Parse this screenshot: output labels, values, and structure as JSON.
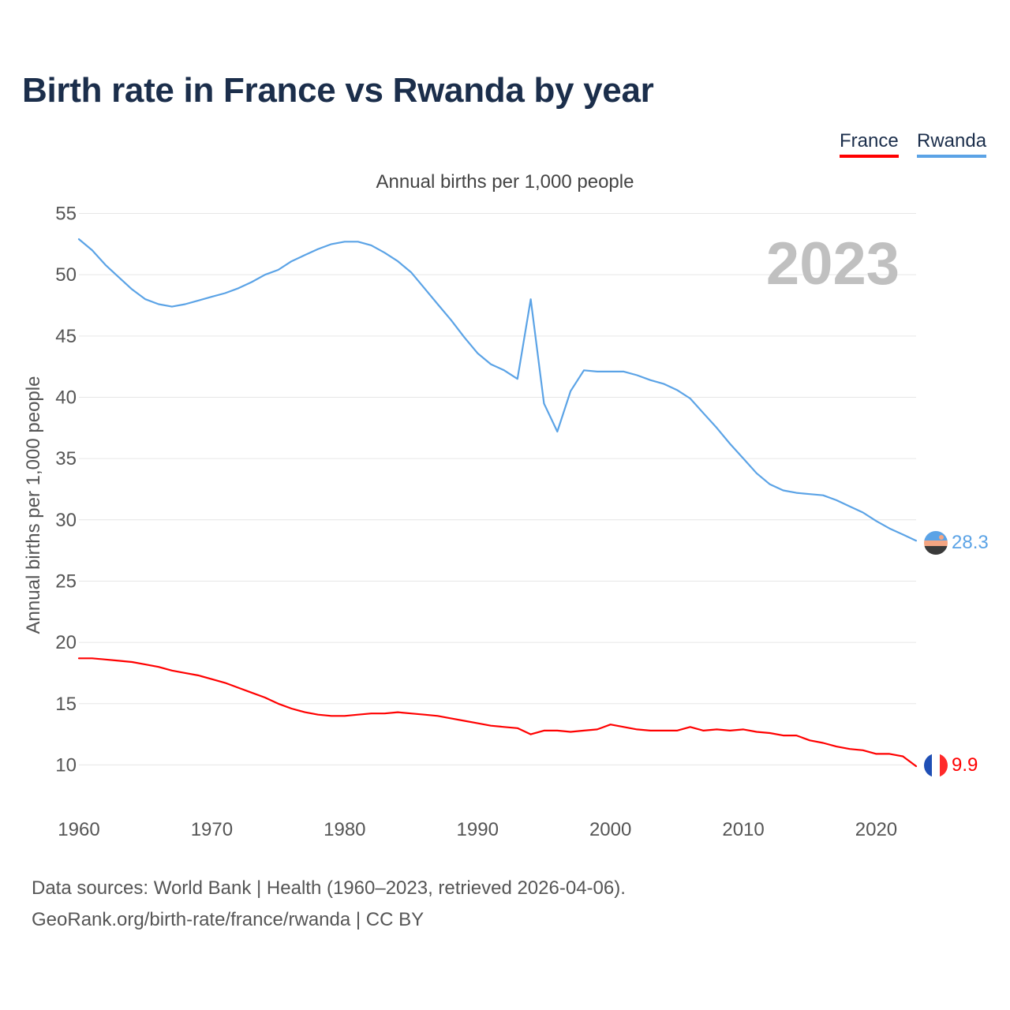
{
  "title": "Birth rate in France vs Rwanda by year",
  "legend": {
    "france": "France",
    "rwanda": "Rwanda"
  },
  "subtitle": "Annual births per 1,000 people",
  "year_label": "2023",
  "source_line1": "Data sources: World Bank | Health (1960–2023, retrieved 2026-04-06).",
  "source_line2": "GeoRank.org/birth-rate/france/rwanda | CC BY",
  "colors": {
    "france": "#ff0000",
    "rwanda": "#5ba3e6",
    "title": "#1b2e4b",
    "grid": "#e6e6e6",
    "year": "#c0c0c0"
  },
  "chart_data": {
    "type": "line",
    "title": "Birth rate in France vs Rwanda by year",
    "xlabel": "",
    "ylabel": "Annual births per 1,000 people",
    "xlim": [
      1960,
      2023
    ],
    "ylim": [
      7,
      56
    ],
    "yticks": [
      10,
      15,
      20,
      25,
      30,
      35,
      40,
      45,
      50,
      55
    ],
    "xticks": [
      1960,
      1970,
      1980,
      1990,
      2000,
      2010,
      2020
    ],
    "x": [
      1960,
      1961,
      1962,
      1963,
      1964,
      1965,
      1966,
      1967,
      1968,
      1969,
      1970,
      1971,
      1972,
      1973,
      1974,
      1975,
      1976,
      1977,
      1978,
      1979,
      1980,
      1981,
      1982,
      1983,
      1984,
      1985,
      1986,
      1987,
      1988,
      1989,
      1990,
      1991,
      1992,
      1993,
      1994,
      1995,
      1996,
      1997,
      1998,
      1999,
      2000,
      2001,
      2002,
      2003,
      2004,
      2005,
      2006,
      2007,
      2008,
      2009,
      2010,
      2011,
      2012,
      2013,
      2014,
      2015,
      2016,
      2017,
      2018,
      2019,
      2020,
      2021,
      2022,
      2023
    ],
    "series": [
      {
        "name": "France",
        "end_label": "9.9",
        "values": [
          18.7,
          18.7,
          18.6,
          18.5,
          18.4,
          18.2,
          18.0,
          17.7,
          17.5,
          17.3,
          17.0,
          16.7,
          16.3,
          15.9,
          15.5,
          15.0,
          14.6,
          14.3,
          14.1,
          14.0,
          14.0,
          14.1,
          14.2,
          14.2,
          14.3,
          14.2,
          14.1,
          14.0,
          13.8,
          13.6,
          13.4,
          13.2,
          13.1,
          13.0,
          12.5,
          12.8,
          12.8,
          12.7,
          12.8,
          12.9,
          13.3,
          13.1,
          12.9,
          12.8,
          12.8,
          12.8,
          13.1,
          12.8,
          12.9,
          12.8,
          12.9,
          12.7,
          12.6,
          12.4,
          12.4,
          12.0,
          11.8,
          11.5,
          11.3,
          11.2,
          10.9,
          10.9,
          10.7,
          9.9
        ]
      },
      {
        "name": "Rwanda",
        "end_label": "28.3",
        "values": [
          52.9,
          52.0,
          50.8,
          49.8,
          48.8,
          48.0,
          47.6,
          47.4,
          47.6,
          47.9,
          48.2,
          48.5,
          48.9,
          49.4,
          50.0,
          50.4,
          51.1,
          51.6,
          52.1,
          52.5,
          52.7,
          52.7,
          52.4,
          51.8,
          51.1,
          50.2,
          48.9,
          47.6,
          46.3,
          44.9,
          43.6,
          42.7,
          42.2,
          41.5,
          48.0,
          39.5,
          37.2,
          40.5,
          42.2,
          42.1,
          42.1,
          42.1,
          41.8,
          41.4,
          41.1,
          40.6,
          39.9,
          38.7,
          37.5,
          36.2,
          35.0,
          33.8,
          32.9,
          32.4,
          32.2,
          32.1,
          32.0,
          31.6,
          31.1,
          30.6,
          29.9,
          29.3,
          28.8,
          28.3
        ]
      }
    ]
  }
}
